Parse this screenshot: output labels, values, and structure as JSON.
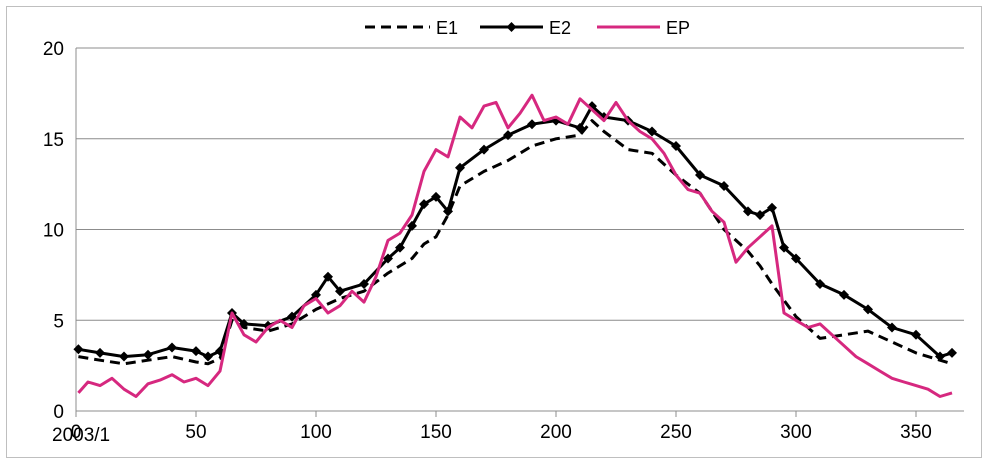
{
  "chart_data": {
    "type": "line",
    "title": "",
    "xlabel": "",
    "ylabel": "",
    "xlim": [
      0,
      370
    ],
    "ylim": [
      0,
      20
    ],
    "x_ticks": [
      0,
      50,
      100,
      150,
      200,
      250,
      300,
      350
    ],
    "y_ticks": [
      0,
      5,
      10,
      15,
      20
    ],
    "x_tick_labels": [
      "0",
      "50",
      "100",
      "150",
      "200",
      "250",
      "300",
      "350"
    ],
    "y_tick_labels": [
      "0",
      "5",
      "10",
      "15",
      "20"
    ],
    "x_annotation": "2003/1",
    "grid": "horizontal",
    "legend_position": "top",
    "series": [
      {
        "name": "E1",
        "style": "dashed",
        "color": "#000000",
        "x": [
          1,
          10,
          20,
          30,
          40,
          50,
          55,
          60,
          65,
          70,
          80,
          90,
          100,
          110,
          120,
          130,
          140,
          145,
          150,
          155,
          160,
          170,
          180,
          190,
          200,
          210,
          215,
          220,
          230,
          240,
          250,
          260,
          270,
          275,
          280,
          285,
          290,
          300,
          310,
          320,
          330,
          340,
          350,
          360,
          365
        ],
        "y": [
          3.0,
          2.8,
          2.6,
          2.8,
          3.0,
          2.7,
          2.6,
          2.9,
          5.0,
          4.6,
          4.4,
          4.8,
          5.6,
          6.2,
          6.6,
          7.6,
          8.4,
          9.2,
          9.6,
          10.8,
          12.4,
          13.2,
          13.8,
          14.6,
          15.0,
          15.2,
          16.0,
          15.4,
          14.4,
          14.2,
          13.0,
          12.0,
          10.0,
          9.4,
          8.8,
          8.0,
          7.0,
          5.2,
          4.0,
          4.2,
          4.4,
          3.8,
          3.2,
          2.8,
          2.6
        ]
      },
      {
        "name": "E2",
        "style": "solid-diamond-markers",
        "color": "#000000",
        "x": [
          1,
          10,
          20,
          30,
          40,
          50,
          55,
          60,
          65,
          70,
          80,
          90,
          100,
          105,
          110,
          120,
          130,
          135,
          140,
          145,
          150,
          155,
          160,
          170,
          180,
          190,
          200,
          210,
          215,
          220,
          230,
          240,
          250,
          260,
          270,
          280,
          285,
          290,
          295,
          300,
          310,
          320,
          330,
          340,
          350,
          360,
          365
        ],
        "y": [
          3.4,
          3.2,
          3.0,
          3.1,
          3.5,
          3.3,
          3.0,
          3.3,
          5.4,
          4.8,
          4.7,
          5.2,
          6.4,
          7.4,
          6.6,
          7.0,
          8.4,
          9.0,
          10.2,
          11.4,
          11.8,
          11.0,
          13.4,
          14.4,
          15.2,
          15.8,
          16.0,
          15.6,
          16.8,
          16.2,
          16.0,
          15.4,
          14.6,
          13.0,
          12.4,
          11.0,
          10.8,
          11.2,
          9.0,
          8.4,
          7.0,
          6.4,
          5.6,
          4.6,
          4.2,
          3.0,
          3.2
        ]
      },
      {
        "name": "EP",
        "style": "solid",
        "color": "#d6287f",
        "x": [
          1,
          5,
          10,
          15,
          20,
          25,
          30,
          35,
          40,
          45,
          50,
          55,
          60,
          65,
          70,
          75,
          80,
          85,
          90,
          95,
          100,
          105,
          110,
          115,
          120,
          125,
          130,
          135,
          140,
          145,
          150,
          155,
          160,
          165,
          170,
          175,
          180,
          185,
          190,
          195,
          200,
          205,
          210,
          215,
          220,
          225,
          230,
          235,
          240,
          245,
          250,
          255,
          260,
          265,
          270,
          275,
          280,
          285,
          290,
          295,
          300,
          305,
          310,
          315,
          320,
          325,
          330,
          335,
          340,
          345,
          350,
          355,
          360,
          365
        ],
        "y": [
          1.0,
          1.6,
          1.4,
          1.8,
          1.2,
          0.8,
          1.5,
          1.7,
          2.0,
          1.6,
          1.8,
          1.4,
          2.2,
          5.4,
          4.2,
          3.8,
          4.6,
          5.0,
          4.6,
          5.8,
          6.2,
          5.4,
          5.8,
          6.6,
          6.0,
          7.4,
          9.4,
          9.8,
          10.8,
          13.2,
          14.4,
          14.0,
          16.2,
          15.6,
          16.8,
          17.0,
          15.6,
          16.4,
          17.4,
          16.0,
          16.2,
          15.8,
          17.2,
          16.6,
          16.0,
          17.0,
          16.0,
          15.4,
          15.0,
          14.2,
          13.0,
          12.2,
          12.0,
          11.0,
          10.4,
          8.2,
          9.0,
          9.6,
          10.2,
          5.4,
          5.0,
          4.6,
          4.8,
          4.2,
          3.6,
          3.0,
          2.6,
          2.2,
          1.8,
          1.6,
          1.4,
          1.2,
          0.8,
          1.0
        ]
      }
    ]
  }
}
